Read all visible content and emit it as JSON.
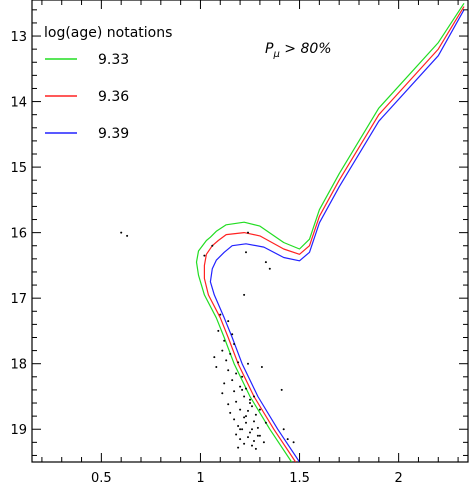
{
  "chart_data": {
    "type": "line",
    "title": "",
    "xlabel": "",
    "ylabel": "",
    "xlim": [
      0.15,
      2.35
    ],
    "ylim": [
      19.5,
      12.45
    ],
    "x_inverted": false,
    "y_inverted": true,
    "x_ticks": [
      0.5,
      1,
      1.5,
      2
    ],
    "x_tick_labels": [
      "0.5",
      "1",
      "1.5",
      "2"
    ],
    "y_ticks": [
      13,
      14,
      15,
      16,
      17,
      18,
      19
    ],
    "y_tick_labels": [
      "13",
      "14",
      "15",
      "16",
      "17",
      "18",
      "19"
    ],
    "legend": {
      "title": "log(age) notations",
      "placement": "top-left"
    },
    "annotation": "Pμ > 80%",
    "series": [
      {
        "name": "9.33",
        "color": "#22dd22",
        "x": [
          1.46,
          1.35,
          1.25,
          1.17,
          1.12,
          1.08,
          1.02,
          0.99,
          0.98,
          0.99,
          1.03,
          1.05,
          1.08,
          1.13,
          1.22,
          1.3,
          1.42,
          1.5,
          1.55,
          1.6,
          1.7,
          1.9,
          2.2,
          2.33
        ],
        "y": [
          19.5,
          19.0,
          18.5,
          18.0,
          17.6,
          17.3,
          16.95,
          16.65,
          16.45,
          16.28,
          16.12,
          16.07,
          15.98,
          15.88,
          15.84,
          15.9,
          16.15,
          16.25,
          16.1,
          15.65,
          15.1,
          14.1,
          13.1,
          12.5
        ]
      },
      {
        "name": "9.36",
        "color": "#ff2222",
        "x": [
          1.48,
          1.37,
          1.27,
          1.19,
          1.14,
          1.1,
          1.04,
          1.02,
          1.02,
          1.03,
          1.06,
          1.09,
          1.13,
          1.22,
          1.3,
          1.42,
          1.5,
          1.55,
          1.6,
          1.7,
          1.9,
          2.2,
          2.33
        ],
        "y": [
          19.5,
          19.0,
          18.5,
          18.0,
          17.6,
          17.3,
          16.95,
          16.7,
          16.5,
          16.33,
          16.2,
          16.12,
          16.03,
          16.0,
          16.05,
          16.25,
          16.33,
          16.2,
          15.75,
          15.2,
          14.2,
          13.2,
          12.55
        ]
      },
      {
        "name": "9.39",
        "color": "#2222ff",
        "x": [
          1.5,
          1.39,
          1.29,
          1.21,
          1.16,
          1.12,
          1.07,
          1.05,
          1.06,
          1.08,
          1.12,
          1.16,
          1.23,
          1.32,
          1.42,
          1.5,
          1.55,
          1.6,
          1.7,
          1.9,
          2.2,
          2.33
        ],
        "y": [
          19.5,
          19.0,
          18.5,
          18.0,
          17.6,
          17.3,
          16.95,
          16.75,
          16.55,
          16.42,
          16.3,
          16.2,
          16.17,
          16.22,
          16.38,
          16.43,
          16.3,
          15.85,
          15.3,
          14.3,
          13.3,
          12.6
        ]
      }
    ],
    "stars": {
      "x": [
        0.6,
        0.63,
        1.1,
        1.14,
        1.09,
        1.16,
        1.12,
        1.17,
        1.11,
        1.15,
        1.07,
        1.13,
        1.19,
        1.08,
        1.14,
        1.18,
        1.21,
        1.16,
        1.12,
        1.2,
        1.23,
        1.17,
        1.11,
        1.22,
        1.25,
        1.18,
        1.14,
        1.26,
        1.2,
        1.24,
        1.15,
        1.28,
        1.22,
        1.17,
        1.27,
        1.23,
        1.19,
        1.29,
        1.21,
        1.25,
        1.18,
        1.3,
        1.24,
        1.2,
        1.27,
        1.32,
        1.22,
        1.26,
        1.19,
        1.28,
        1.24,
        1.31,
        1.21,
        1.27,
        1.25,
        1.3,
        1.23,
        1.33,
        1.26,
        1.29,
        1.41,
        1.44,
        1.47,
        1.42,
        1.2,
        1.22,
        1.33,
        1.35,
        1.23,
        1.24,
        1.06,
        1.02
      ],
      "y": [
        16.0,
        16.05,
        17.25,
        17.35,
        17.5,
        17.55,
        17.65,
        17.7,
        17.8,
        17.85,
        17.9,
        17.95,
        17.98,
        18.05,
        18.1,
        18.15,
        18.2,
        18.25,
        18.3,
        18.35,
        18.38,
        18.42,
        18.45,
        18.5,
        18.55,
        18.58,
        18.62,
        18.65,
        18.7,
        18.72,
        18.75,
        18.78,
        18.82,
        18.85,
        18.88,
        18.9,
        18.95,
        18.98,
        19.0,
        19.05,
        19.08,
        19.1,
        19.12,
        19.15,
        19.18,
        19.2,
        19.22,
        19.25,
        19.28,
        19.3,
        18.0,
        18.05,
        18.4,
        18.5,
        18.6,
        18.7,
        18.8,
        18.9,
        19.0,
        19.1,
        18.4,
        19.15,
        19.2,
        19.0,
        19.0,
        16.95,
        16.45,
        16.55,
        16.3,
        16.0,
        16.2,
        16.35
      ]
    }
  }
}
